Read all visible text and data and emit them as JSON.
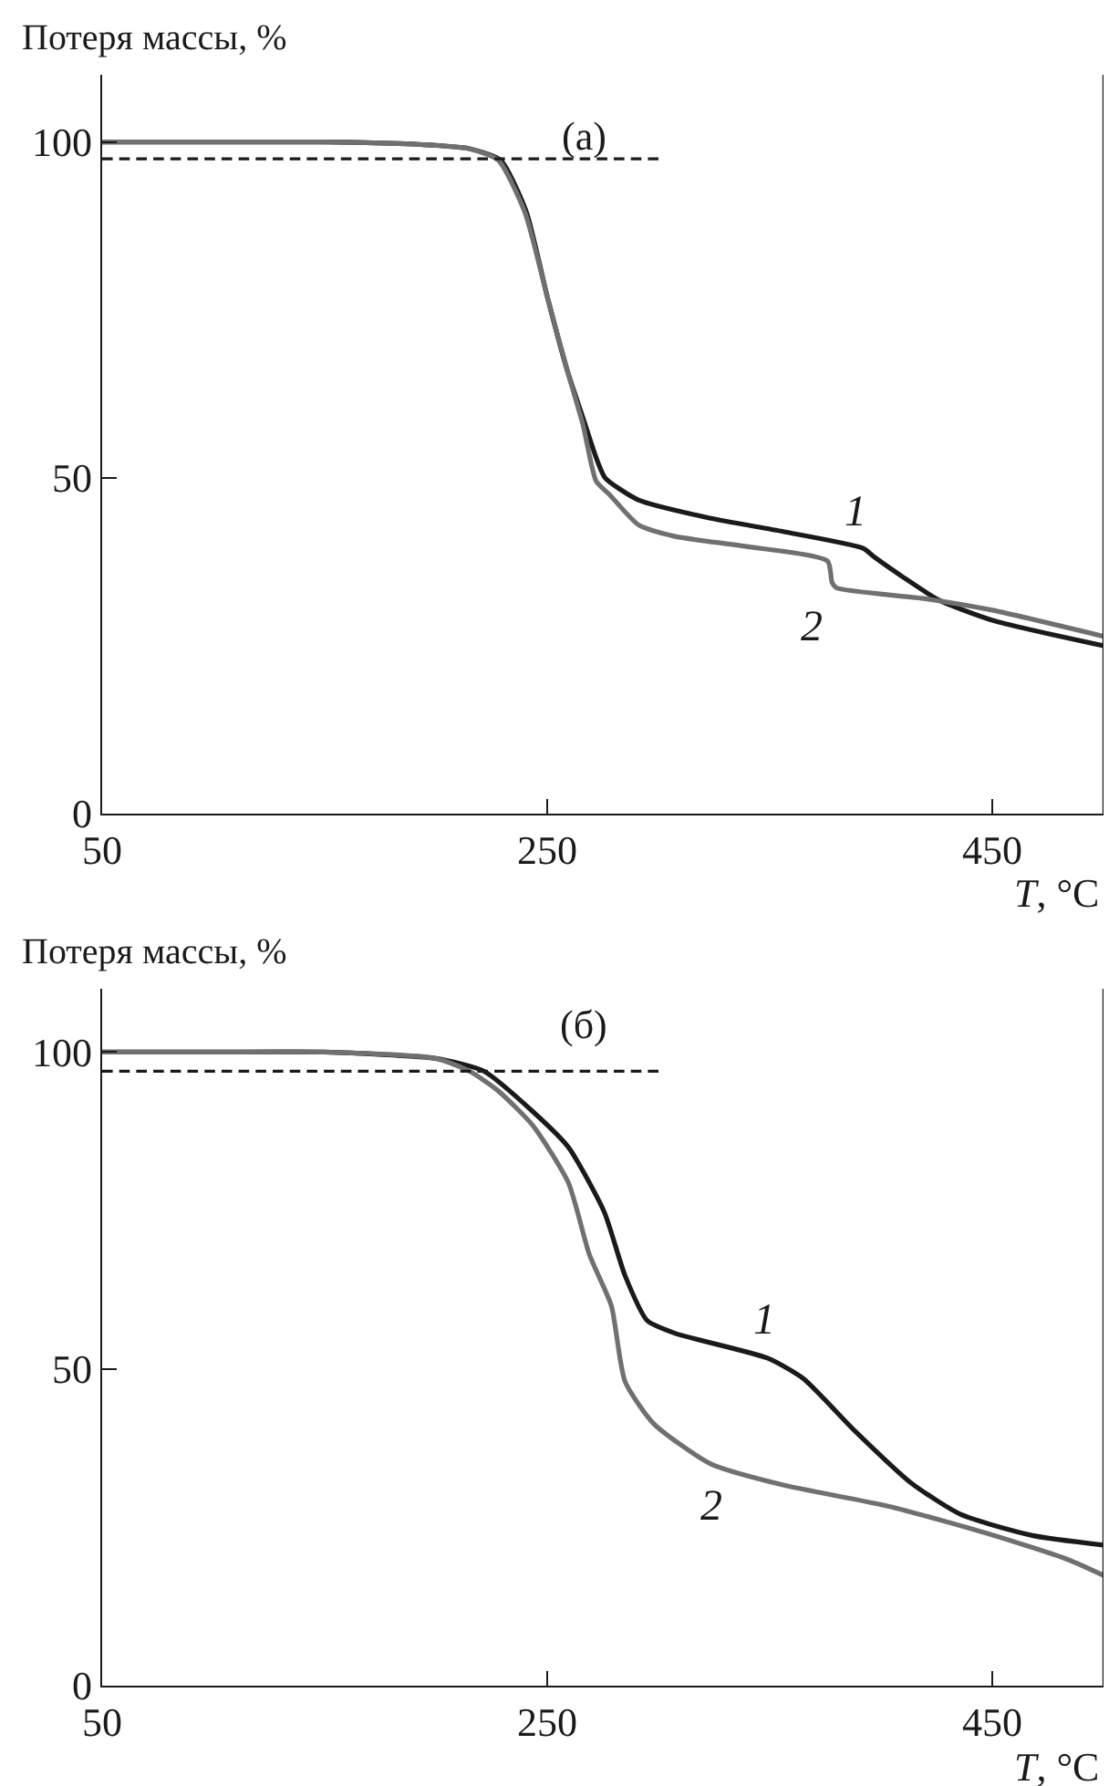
{
  "chart_data": [
    {
      "type": "line",
      "title": "(а)",
      "xlabel": "T, °C",
      "ylabel": "Потеря массы, %",
      "xlim": [
        50,
        500
      ],
      "ylim": [
        0,
        110
      ],
      "xticks": [
        50,
        250,
        450
      ],
      "yticks": [
        0,
        50,
        100
      ],
      "legend": false,
      "marker": "none",
      "series": [
        {
          "name": "1",
          "color": "#1a1a1a",
          "x": [
            50,
            100,
            150,
            180,
            200,
            215,
            229,
            240.5,
            250,
            259,
            266,
            272,
            276,
            291,
            323,
            356,
            392,
            397,
            410,
            426,
            450,
            500
          ],
          "values": [
            100,
            100,
            100,
            99.8,
            99.5,
            99,
            97.3,
            89.7,
            77,
            66,
            59,
            53,
            50,
            46.7,
            44,
            42,
            39.5,
            38.2,
            35.2,
            31.8,
            28.8,
            25
          ]
        },
        {
          "name": "2",
          "color": "#707070",
          "x": [
            50,
            100,
            150,
            180,
            200,
            215,
            228,
            240,
            250,
            259,
            266,
            272,
            278,
            291,
            307,
            339,
            376,
            378,
            380,
            420,
            450,
            500
          ],
          "values": [
            100,
            100,
            100,
            99.8,
            99.5,
            99,
            97.3,
            89.5,
            77,
            66,
            58,
            49.5,
            47.5,
            43,
            41.3,
            39.8,
            37.6,
            34.4,
            33.6,
            32,
            30.3,
            26.4
          ]
        },
        {
          "color": "#1a1a1a",
          "line_style": "dashed",
          "x": [
            50,
            300
          ],
          "values": [
            97.5,
            97.5
          ]
        }
      ]
    },
    {
      "type": "line",
      "title": "(б)",
      "xlabel": "T, °C",
      "ylabel": "Потеря массы, %",
      "xlim": [
        50,
        500
      ],
      "ylim": [
        0,
        110
      ],
      "xticks": [
        50,
        250,
        450
      ],
      "yticks": [
        0,
        50,
        100
      ],
      "legend": false,
      "marker": "none",
      "series": [
        {
          "name": "1",
          "color": "#1a1a1a",
          "x": [
            50,
            100,
            150,
            200,
            221.5,
            243.6,
            259.5,
            275.6,
            285,
            295,
            307.6,
            349,
            365,
            388,
            413.5,
            436,
            468,
            500
          ],
          "values": [
            100,
            100,
            100,
            99,
            97,
            90.6,
            85,
            74.8,
            64.7,
            57.6,
            55.6,
            51.7,
            48.5,
            40.3,
            32,
            27,
            23.7,
            22.2
          ]
        },
        {
          "name": "2",
          "color": "#707070",
          "x": [
            50,
            100,
            150,
            200,
            215,
            227.6,
            243.6,
            259.5,
            269,
            278.8,
            285,
            298,
            323.5,
            355.6,
            403.6,
            450,
            484,
            500
          ],
          "values": [
            100,
            100,
            100,
            99,
            97,
            94,
            88.4,
            79.4,
            68,
            60,
            48,
            41.3,
            35,
            31.7,
            28.3,
            23.8,
            19.9,
            17.4
          ]
        },
        {
          "color": "#1a1a1a",
          "line_style": "dashed",
          "x": [
            50,
            300
          ],
          "values": [
            97,
            97
          ]
        }
      ]
    }
  ]
}
